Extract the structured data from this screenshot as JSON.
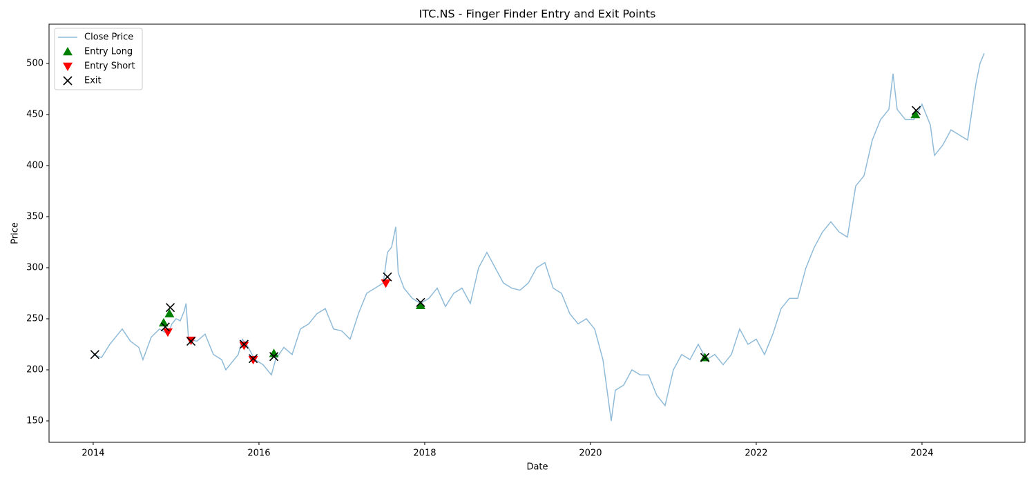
{
  "chart_data": {
    "type": "line",
    "title": "ITC.NS - Finger Finder Entry and Exit Points",
    "xlabel": "Date",
    "ylabel": "Price",
    "xlim": [
      2013.467,
      2025.242
    ],
    "ylim": [
      129.05,
      538.5
    ],
    "xticks": [
      2014,
      2016,
      2018,
      2020,
      2022,
      2024
    ],
    "yticks": [
      150,
      200,
      250,
      300,
      350,
      400,
      450,
      500
    ],
    "legend": "upper left",
    "series": [
      {
        "name": "Close Price",
        "color": "#1f77b4",
        "alpha": 0.5,
        "marker": "line",
        "x": [
          2014.0,
          2014.1,
          2014.2,
          2014.3,
          2014.35,
          2014.45,
          2014.55,
          2014.6,
          2014.7,
          2014.8,
          2014.9,
          2014.95,
          2015.0,
          2015.05,
          2015.1,
          2015.12,
          2015.15,
          2015.25,
          2015.35,
          2015.45,
          2015.55,
          2015.6,
          2015.7,
          2015.75,
          2015.8,
          2015.85,
          2015.95,
          2016.05,
          2016.15,
          2016.2,
          2016.3,
          2016.4,
          2016.5,
          2016.6,
          2016.7,
          2016.8,
          2016.9,
          2017.0,
          2017.1,
          2017.2,
          2017.3,
          2017.4,
          2017.5,
          2017.55,
          2017.6,
          2017.65,
          2017.68,
          2017.75,
          2017.85,
          2017.95,
          2018.05,
          2018.15,
          2018.25,
          2018.35,
          2018.45,
          2018.55,
          2018.65,
          2018.75,
          2018.85,
          2018.95,
          2019.05,
          2019.15,
          2019.25,
          2019.35,
          2019.45,
          2019.55,
          2019.65,
          2019.75,
          2019.85,
          2019.95,
          2020.05,
          2020.15,
          2020.25,
          2020.3,
          2020.4,
          2020.5,
          2020.6,
          2020.7,
          2020.8,
          2020.9,
          2021.0,
          2021.1,
          2021.2,
          2021.3,
          2021.4,
          2021.5,
          2021.6,
          2021.7,
          2021.8,
          2021.9,
          2022.0,
          2022.1,
          2022.2,
          2022.3,
          2022.4,
          2022.5,
          2022.6,
          2022.7,
          2022.8,
          2022.9,
          2023.0,
          2023.1,
          2023.2,
          2023.3,
          2023.4,
          2023.5,
          2023.6,
          2023.65,
          2023.7,
          2023.8,
          2023.9,
          2024.0,
          2024.1,
          2024.15,
          2024.25,
          2024.35,
          2024.45,
          2024.55,
          2024.65,
          2024.7,
          2024.75
        ],
        "values": [
          215,
          212,
          225,
          235,
          240,
          228,
          222,
          210,
          232,
          240,
          235,
          245,
          250,
          248,
          258,
          265,
          230,
          228,
          235,
          215,
          210,
          200,
          210,
          215,
          230,
          225,
          210,
          205,
          195,
          210,
          222,
          215,
          240,
          245,
          255,
          260,
          240,
          238,
          230,
          255,
          275,
          280,
          285,
          315,
          320,
          340,
          295,
          280,
          270,
          265,
          270,
          280,
          262,
          275,
          280,
          265,
          300,
          315,
          300,
          285,
          280,
          278,
          285,
          300,
          305,
          280,
          275,
          255,
          245,
          250,
          240,
          210,
          150,
          180,
          185,
          200,
          195,
          195,
          175,
          165,
          200,
          215,
          210,
          225,
          210,
          215,
          205,
          215,
          240,
          225,
          230,
          215,
          235,
          260,
          270,
          270,
          300,
          320,
          335,
          345,
          335,
          330,
          380,
          390,
          425,
          445,
          455,
          490,
          455,
          445,
          445,
          460,
          440,
          410,
          420,
          435,
          430,
          425,
          480,
          500,
          510
        ]
      },
      {
        "name": "Entry Long",
        "color": "green",
        "marker": "^",
        "x": [
          2014.85,
          2014.92,
          2016.18,
          2017.95,
          2021.38,
          2023.92
        ],
        "values": [
          246,
          255,
          216,
          263,
          212,
          450
        ]
      },
      {
        "name": "Entry Short",
        "color": "red",
        "marker": "v",
        "x": [
          2014.9,
          2015.18,
          2015.82,
          2015.93,
          2017.53
        ],
        "values": [
          237,
          229,
          224,
          210,
          285
        ]
      },
      {
        "name": "Exit",
        "color": "black",
        "marker": "x",
        "x": [
          2014.02,
          2014.87,
          2014.93,
          2015.18,
          2015.82,
          2015.93,
          2016.18,
          2017.55,
          2017.95,
          2021.38,
          2023.93
        ],
        "values": [
          215,
          242,
          261,
          228,
          225,
          211,
          213,
          291,
          266,
          212,
          454
        ]
      }
    ]
  }
}
